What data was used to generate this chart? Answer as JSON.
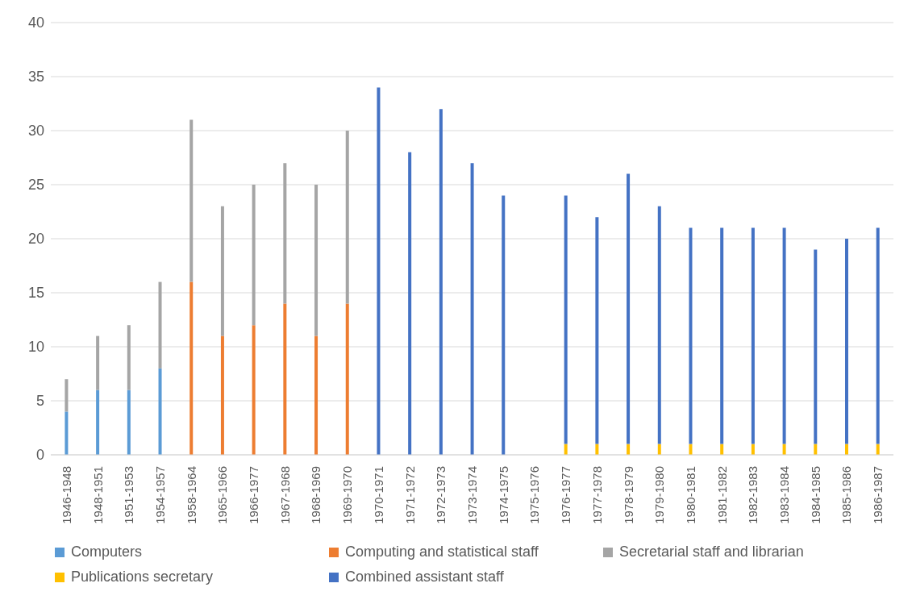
{
  "chart_data": {
    "type": "bar",
    "stacked": true,
    "categories": [
      "1946-1948",
      "1948-1951",
      "1951-1953",
      "1954-1957",
      "1958-1964",
      "1965-1966",
      "1966-1977",
      "1967-1968",
      "1968-1969",
      "1969-1970",
      "1970-1971",
      "1971-1972",
      "1972-1973",
      "1973-1974",
      "1974-1975",
      "1975-1976",
      "1976-1977",
      "1977-1978",
      "1978-1979",
      "1979-1980",
      "1980-1981",
      "1981-1982",
      "1982-1983",
      "1983-1984",
      "1984-1985",
      "1985-1986",
      "1986-1987"
    ],
    "series": [
      {
        "name": "Computers",
        "color": "#5b9bd5",
        "values": [
          4,
          6,
          6,
          8,
          null,
          null,
          null,
          null,
          null,
          null,
          null,
          null,
          null,
          null,
          null,
          null,
          null,
          null,
          null,
          null,
          null,
          null,
          null,
          null,
          null,
          null,
          null
        ]
      },
      {
        "name": "Computing and statistical staff",
        "color": "#ed7d31",
        "values": [
          null,
          null,
          null,
          null,
          16,
          11,
          12,
          14,
          11,
          14,
          null,
          null,
          null,
          null,
          null,
          null,
          null,
          null,
          null,
          null,
          null,
          null,
          null,
          null,
          null,
          null,
          null
        ]
      },
      {
        "name": "Secretarial staff and librarian",
        "color": "#a5a5a5",
        "values": [
          3,
          5,
          6,
          8,
          15,
          12,
          13,
          13,
          14,
          16,
          null,
          null,
          null,
          null,
          null,
          null,
          null,
          null,
          null,
          null,
          null,
          null,
          null,
          null,
          null,
          null,
          null
        ]
      },
      {
        "name": "Publications secretary",
        "color": "#ffc000",
        "values": [
          null,
          null,
          null,
          null,
          null,
          null,
          null,
          null,
          null,
          null,
          null,
          null,
          null,
          null,
          null,
          null,
          1,
          1,
          1,
          1,
          1,
          1,
          1,
          1,
          1,
          1,
          1
        ]
      },
      {
        "name": "Combined assistant staff",
        "color": "#4472c4",
        "values": [
          null,
          null,
          null,
          null,
          null,
          null,
          null,
          null,
          null,
          null,
          34,
          28,
          32,
          27,
          24,
          null,
          23,
          21,
          25,
          22,
          20,
          20,
          20,
          20,
          18,
          19,
          20
        ]
      }
    ],
    "ylim": [
      0,
      40
    ],
    "yticks": [
      0,
      5,
      10,
      15,
      20,
      25,
      30,
      35,
      40
    ],
    "grid": "y",
    "legend": "bottom"
  }
}
